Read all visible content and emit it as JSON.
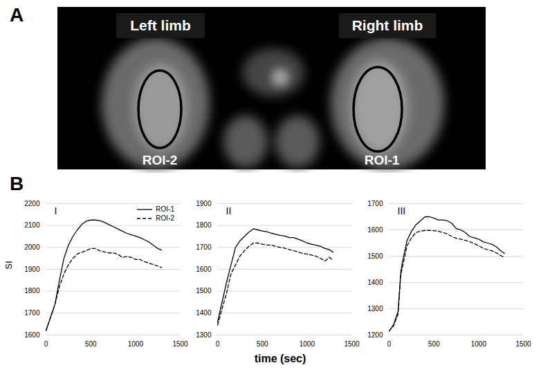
{
  "panel_a": {
    "label": "A",
    "left_label": "Left limb",
    "right_label": "Right limb",
    "left_roi": "ROI-2",
    "right_roi": "ROI-1"
  },
  "panel_b": {
    "label": "B"
  },
  "chart_data": [
    {
      "type": "line",
      "title": "I",
      "ylabel": "SI",
      "x": [
        0,
        50,
        100,
        150,
        200,
        250,
        300,
        350,
        400,
        450,
        500,
        550,
        600,
        650,
        700,
        750,
        800,
        850,
        900,
        950,
        1000,
        1050,
        1100,
        1150,
        1200,
        1250,
        1290
      ],
      "series": [
        {
          "name": "ROI-1",
          "color": "#000000",
          "line_style": "solid",
          "values": [
            1620,
            1680,
            1740,
            1850,
            1950,
            2010,
            2050,
            2080,
            2105,
            2120,
            2125,
            2125,
            2122,
            2115,
            2105,
            2095,
            2085,
            2075,
            2065,
            2058,
            2052,
            2045,
            2035,
            2025,
            2010,
            1995,
            1988
          ]
        },
        {
          "name": "ROI-2",
          "color": "#000000",
          "line_style": "dashed",
          "values": [
            1620,
            1680,
            1740,
            1820,
            1880,
            1920,
            1950,
            1970,
            1978,
            1985,
            1995,
            1995,
            1985,
            1980,
            1975,
            1975,
            1970,
            1955,
            1958,
            1955,
            1945,
            1945,
            1935,
            1928,
            1922,
            1915,
            1908
          ]
        }
      ],
      "xlim": [
        0,
        1500
      ],
      "xticks": [
        0,
        500,
        1000,
        1500
      ],
      "ylim": [
        1600,
        2200
      ],
      "yticks": [
        1600,
        1700,
        1800,
        1900,
        2000,
        2100,
        2200
      ],
      "grid": "y",
      "legend": "top-right"
    },
    {
      "type": "line",
      "title": "II",
      "xlabel": "time (sec)",
      "x": [
        0,
        50,
        100,
        150,
        200,
        250,
        300,
        350,
        400,
        450,
        500,
        550,
        600,
        650,
        700,
        750,
        800,
        850,
        900,
        950,
        1000,
        1050,
        1100,
        1150,
        1200,
        1250,
        1290
      ],
      "series": [
        {
          "name": "ROI-1",
          "color": "#000000",
          "line_style": "solid",
          "values": [
            1360,
            1450,
            1540,
            1620,
            1700,
            1730,
            1750,
            1770,
            1785,
            1780,
            1775,
            1772,
            1765,
            1760,
            1755,
            1752,
            1745,
            1745,
            1738,
            1730,
            1720,
            1715,
            1710,
            1705,
            1695,
            1690,
            1678
          ]
        },
        {
          "name": "ROI-2",
          "color": "#000000",
          "line_style": "dashed",
          "values": [
            1345,
            1420,
            1490,
            1580,
            1620,
            1660,
            1685,
            1705,
            1720,
            1720,
            1715,
            1712,
            1710,
            1705,
            1700,
            1697,
            1690,
            1685,
            1680,
            1672,
            1670,
            1665,
            1660,
            1650,
            1638,
            1655,
            1640
          ]
        }
      ],
      "xlim": [
        0,
        1500
      ],
      "xticks": [
        0,
        500,
        1000,
        1500
      ],
      "ylim": [
        1300,
        1900
      ],
      "yticks": [
        1300,
        1400,
        1500,
        1600,
        1700,
        1800,
        1900
      ],
      "grid": "y"
    },
    {
      "type": "line",
      "title": "III",
      "x": [
        0,
        50,
        100,
        130,
        150,
        200,
        250,
        300,
        350,
        400,
        450,
        500,
        550,
        600,
        650,
        700,
        750,
        800,
        850,
        900,
        950,
        1000,
        1050,
        1100,
        1150,
        1200,
        1250,
        1290
      ],
      "series": [
        {
          "name": "ROI-1",
          "color": "#000000",
          "line_style": "solid",
          "values": [
            1215,
            1240,
            1290,
            1440,
            1480,
            1560,
            1595,
            1620,
            1635,
            1650,
            1650,
            1645,
            1638,
            1638,
            1635,
            1625,
            1605,
            1600,
            1590,
            1575,
            1570,
            1565,
            1555,
            1550,
            1545,
            1535,
            1520,
            1510
          ]
        },
        {
          "name": "ROI-2",
          "color": "#000000",
          "line_style": "dashed",
          "values": [
            1215,
            1235,
            1280,
            1430,
            1460,
            1540,
            1570,
            1590,
            1595,
            1598,
            1598,
            1597,
            1595,
            1590,
            1585,
            1575,
            1568,
            1565,
            1560,
            1555,
            1548,
            1540,
            1530,
            1525,
            1520,
            1512,
            1502,
            1495
          ]
        }
      ],
      "xlim": [
        0,
        1500
      ],
      "xticks": [
        0,
        500,
        1000,
        1500
      ],
      "ylim": [
        1200,
        1700
      ],
      "yticks": [
        1200,
        1300,
        1400,
        1500,
        1600,
        1700
      ],
      "grid": "y"
    }
  ]
}
